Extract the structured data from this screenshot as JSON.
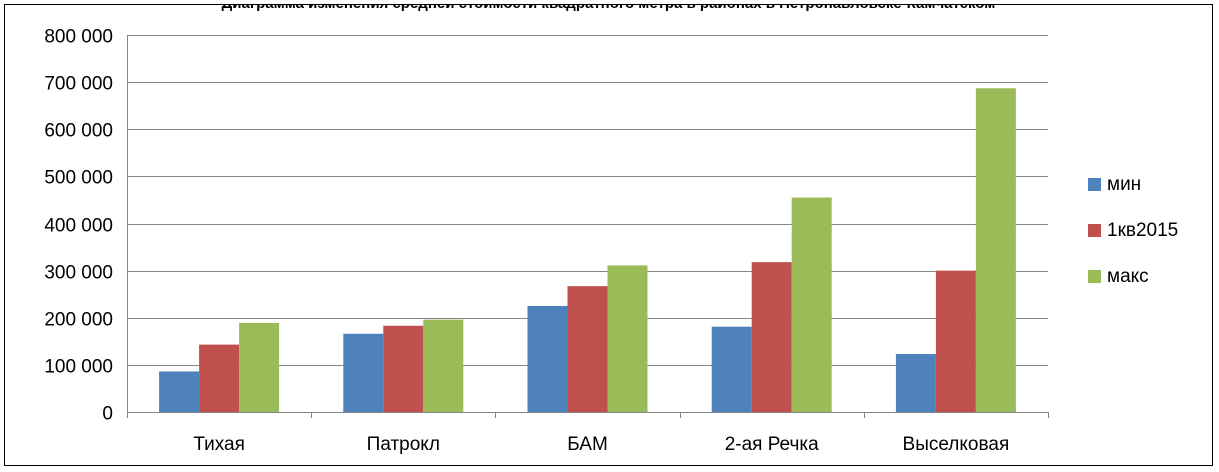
{
  "chart_data": {
    "type": "bar",
    "title": "Диаграмма изменения средней стоимости квадратного метра в районах в Петропавловске-Камчатском",
    "xlabel": "",
    "ylabel": "",
    "categories": [
      "Тихая",
      "Патрокл",
      "БАМ",
      "2-ая Речка",
      "Выселковая"
    ],
    "series": [
      {
        "name": "мин",
        "color": "#4F81BD",
        "values": [
          86000,
          166000,
          225000,
          181000,
          123000
        ]
      },
      {
        "name": "1кв2015",
        "color": "#C0504D",
        "values": [
          143000,
          183000,
          267000,
          318000,
          300000
        ]
      },
      {
        "name": "макс",
        "color": "#9BBB59",
        "values": [
          189000,
          196000,
          311000,
          455000,
          687000
        ]
      }
    ],
    "ylim": [
      0,
      800000
    ],
    "y_ticks": [
      "0",
      "100 000",
      "200 000",
      "300 000",
      "400 000",
      "500 000",
      "600 000",
      "700 000",
      "800 000"
    ],
    "grid": true,
    "legend_position": "right"
  }
}
